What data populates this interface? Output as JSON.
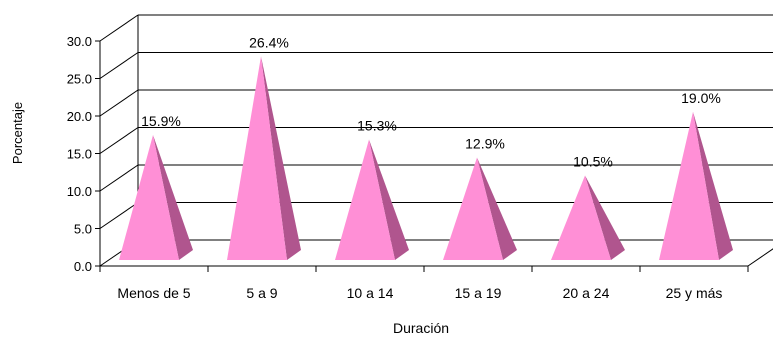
{
  "chart_data": {
    "type": "bar",
    "bar_shape": "pyramid",
    "three_d": true,
    "xlabel": "Duración",
    "ylabel": "Porcentaje",
    "categories": [
      "Menos de 5",
      "5 a 9",
      "10 a 14",
      "15 a 19",
      "20 a 24",
      "25 y más"
    ],
    "values": [
      15.9,
      26.4,
      15.3,
      12.9,
      10.5,
      19.0
    ],
    "data_labels": [
      "15.9%",
      "26.4%",
      "15.3%",
      "12.9%",
      "10.5%",
      "19.0%"
    ],
    "ylim": [
      0,
      30
    ],
    "yticks": [
      0,
      5,
      10,
      15,
      20,
      25,
      30
    ],
    "ytick_labels": [
      "0.0",
      "5.0",
      "10.0",
      "15.0",
      "20.0",
      "25.0",
      "30.0"
    ],
    "grid": true,
    "legend": "none",
    "colors": {
      "pyramid_front": "#FF8FD6",
      "pyramid_side": "#B0558E",
      "grid": "#000000"
    }
  }
}
